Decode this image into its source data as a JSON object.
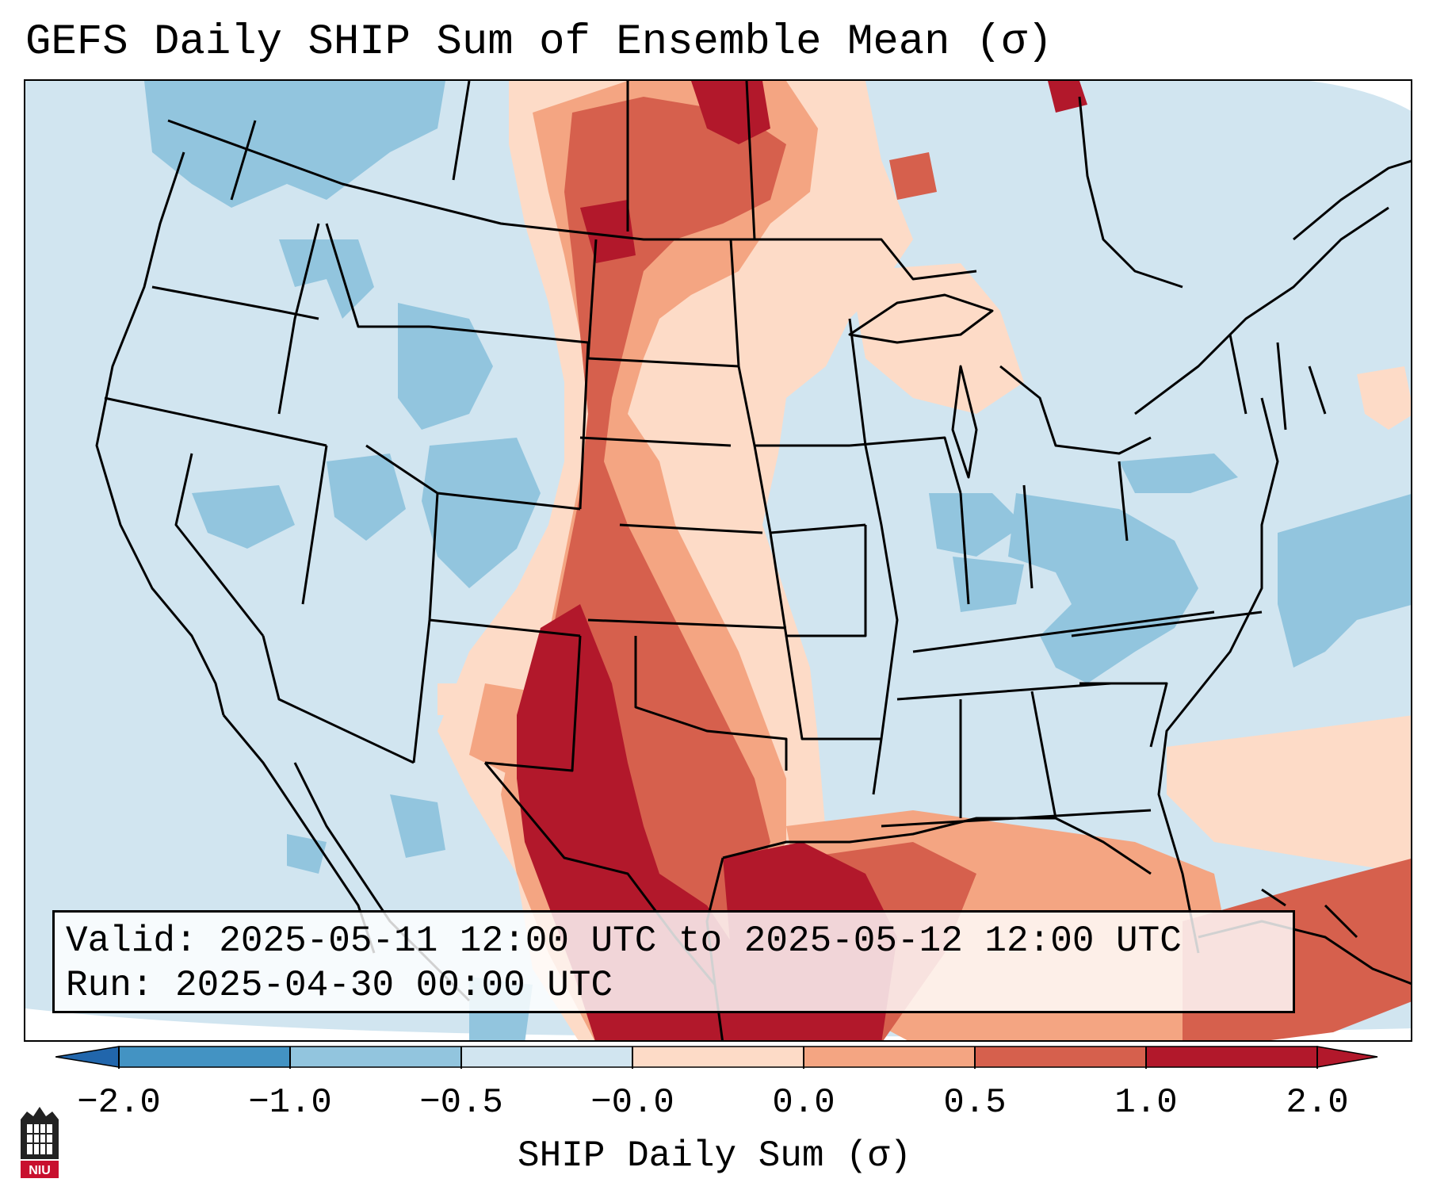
{
  "title": "GEFS Daily SHIP Sum of Ensemble Mean (σ)",
  "info": {
    "valid_label": "Valid:",
    "valid_value": "2025-05-11 12:00 UTC to 2025-05-12 12:00 UTC",
    "run_label": "Run:",
    "run_value": "2025-04-30 00:00 UTC"
  },
  "colorbar": {
    "ticks": [
      "−2.0",
      "−1.0",
      "−0.5",
      "−0.0",
      "0.0",
      "0.5",
      "1.0",
      "2.0"
    ],
    "colors": [
      "#4393c3",
      "#92c5de",
      "#d1e5f0",
      "#fddbc7",
      "#f4a582",
      "#d6604d",
      "#b2182b"
    ],
    "under_color": "#2166ac",
    "over_color": "#b2182b",
    "label": "SHIP Daily Sum (σ)"
  },
  "logo": {
    "text": "NIU",
    "icon": "university-seal-icon"
  },
  "map": {
    "background_color": "#d1e5f0",
    "field_colors": {
      "weak_negative": "#92c5de",
      "weak_positive": "#fddbc7",
      "moderate_positive": "#f4a582",
      "strong_positive": "#d6604d",
      "extreme_positive": "#b2182b"
    }
  }
}
